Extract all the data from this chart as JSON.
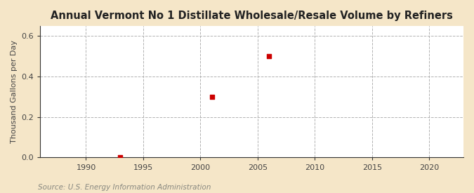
{
  "title": "Annual Vermont No 1 Distillate Wholesale/Resale Volume by Refiners",
  "ylabel": "Thousand Gallons per Day",
  "source": "Source: U.S. Energy Information Administration",
  "figure_bg": "#f5e6c8",
  "plot_bg": "#ffffff",
  "scatter_color": "#cc0000",
  "scatter_x": [
    1993,
    2001,
    2006
  ],
  "scatter_y": [
    0.003,
    0.3,
    0.5
  ],
  "xlim": [
    1986,
    2023
  ],
  "ylim": [
    0.0,
    0.65
  ],
  "xticks": [
    1990,
    1995,
    2000,
    2005,
    2010,
    2015,
    2020
  ],
  "yticks": [
    0.0,
    0.2,
    0.4,
    0.6
  ],
  "grid_color": "#aaaaaa",
  "marker_size": 5,
  "title_fontsize": 10.5,
  "label_fontsize": 8,
  "tick_fontsize": 8,
  "source_fontsize": 7.5,
  "source_color": "#888880",
  "title_color": "#222222",
  "tick_color": "#444444",
  "ylabel_color": "#444444"
}
